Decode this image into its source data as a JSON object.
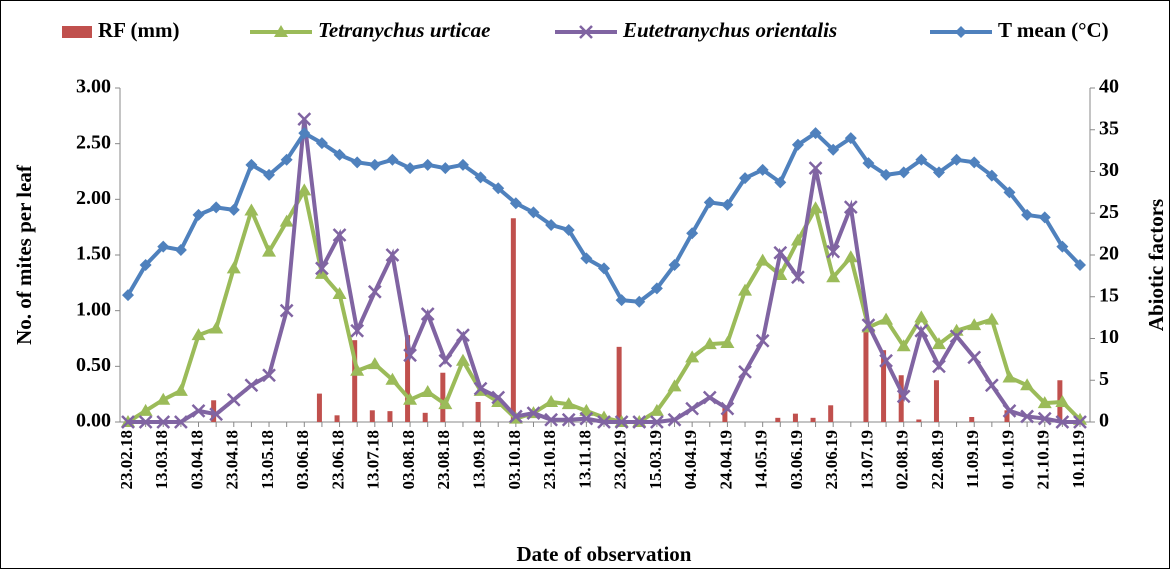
{
  "chart_data": {
    "type": "combo",
    "x_label": "Date of observation",
    "y_label": "No. of mites per leaf",
    "y2_label": "Abiotic factors",
    "categories": [
      "23.02.18",
      null,
      "13.03.18",
      null,
      "03.04.18",
      null,
      "23.04.18",
      null,
      "13.05.18",
      null,
      "03.06.18",
      null,
      "23.06.18",
      null,
      "13.07.18",
      null,
      "03.08.18",
      null,
      "23.08.18",
      null,
      "13.09.18",
      null,
      "03.10.18",
      null,
      "23.10.18",
      null,
      "13.11.18",
      null,
      "23.02.19",
      null,
      "15.03.19",
      null,
      "04.04.19",
      null,
      "24.04.19",
      null,
      "14.05.19",
      null,
      "03.06.19",
      null,
      "23.06.19",
      null,
      "13.07.19",
      null,
      "02.08.19",
      null,
      "22.08.19",
      null,
      "11.09.19",
      null,
      "01.10.19",
      null,
      "21.10.19",
      null,
      "10.11.19"
    ],
    "ylim": [
      0,
      3
    ],
    "yticks": [
      {
        "value": 0,
        "label": "0.00"
      },
      {
        "value": 0.5,
        "label": "0.50"
      },
      {
        "value": 1,
        "label": "1.00"
      },
      {
        "value": 1.5,
        "label": "1.50"
      },
      {
        "value": 2,
        "label": "2.00"
      },
      {
        "value": 2.5,
        "label": "2.50"
      },
      {
        "value": 3,
        "label": "3.00"
      }
    ],
    "y2lim": [
      0,
      40
    ],
    "y2ticks": [
      0,
      5,
      10,
      15,
      20,
      25,
      30,
      35,
      40
    ],
    "series": [
      {
        "name": "RF (mm)",
        "type": "bar",
        "axis": "y2",
        "color": "#c0504d",
        "values": [
          0,
          0,
          0,
          0,
          0,
          2.6,
          0,
          0,
          0,
          0,
          0,
          3.4,
          0.8,
          9.8,
          1.4,
          1.3,
          10.4,
          1.1,
          5.9,
          0,
          2.4,
          0,
          24.4,
          0,
          0,
          0,
          0,
          0,
          9.0,
          0,
          0,
          0,
          0,
          0,
          2.0,
          0,
          0,
          0.5,
          1.0,
          0.5,
          2.0,
          0,
          11.0,
          8.6,
          5.6,
          0.3,
          5.0,
          0,
          0.6,
          0,
          1.4,
          0,
          0,
          5.0,
          0
        ]
      },
      {
        "name": "Tetranychus urticae",
        "type": "line",
        "marker": "triangle",
        "color": "#9bbb59",
        "values": [
          0,
          0.1,
          0.2,
          0.28,
          0.78,
          0.84,
          1.38,
          1.9,
          1.53,
          1.8,
          2.08,
          1.33,
          1.15,
          0.46,
          0.52,
          0.38,
          0.2,
          0.27,
          0.16,
          0.55,
          0.28,
          0.18,
          0.03,
          0.08,
          0.18,
          0.16,
          0.1,
          0.04,
          0,
          0,
          0.1,
          0.32,
          0.58,
          0.7,
          0.71,
          1.18,
          1.45,
          1.32,
          1.63,
          1.92,
          1.3,
          1.48,
          0.85,
          0.92,
          0.68,
          0.94,
          0.7,
          0.82,
          0.87,
          0.92,
          0.4,
          0.33,
          0.17,
          0.18,
          0.02
        ]
      },
      {
        "name": "Eutetranychus orientalis",
        "type": "line",
        "marker": "x",
        "color": "#8064a2",
        "values": [
          0,
          0,
          0,
          0,
          0.1,
          0.07,
          0.2,
          0.33,
          0.42,
          1.0,
          2.72,
          1.38,
          1.68,
          0.82,
          1.17,
          1.5,
          0.6,
          0.97,
          0.55,
          0.78,
          0.3,
          0.22,
          0.05,
          0.08,
          0.02,
          0.02,
          0.03,
          0,
          0,
          0,
          0,
          0.02,
          0.12,
          0.22,
          0.12,
          0.45,
          0.73,
          1.52,
          1.3,
          2.28,
          1.53,
          1.93,
          0.87,
          0.55,
          0.23,
          0.82,
          0.5,
          0.77,
          0.58,
          0.33,
          0.1,
          0.05,
          0.03,
          0,
          0
        ]
      },
      {
        "name": "T mean (°C)",
        "type": "line",
        "marker": "diamond",
        "axis": "y2",
        "color": "#4f81bd",
        "values": [
          15.2,
          18.8,
          21.0,
          20.6,
          24.8,
          25.7,
          25.4,
          30.8,
          29.6,
          31.4,
          34.6,
          33.4,
          32.0,
          31.1,
          30.8,
          31.4,
          30.4,
          30.8,
          30.4,
          30.8,
          29.3,
          28.0,
          26.2,
          25.1,
          23.6,
          23.0,
          19.6,
          18.4,
          14.6,
          14.4,
          16.0,
          18.8,
          22.6,
          26.3,
          26.0,
          29.2,
          30.2,
          28.7,
          33.2,
          34.6,
          32.6,
          34.0,
          31.0,
          29.6,
          29.9,
          31.4,
          29.9,
          31.4,
          31.1,
          29.5,
          27.5,
          24.8,
          24.5,
          21.0,
          18.8
        ]
      }
    ]
  }
}
